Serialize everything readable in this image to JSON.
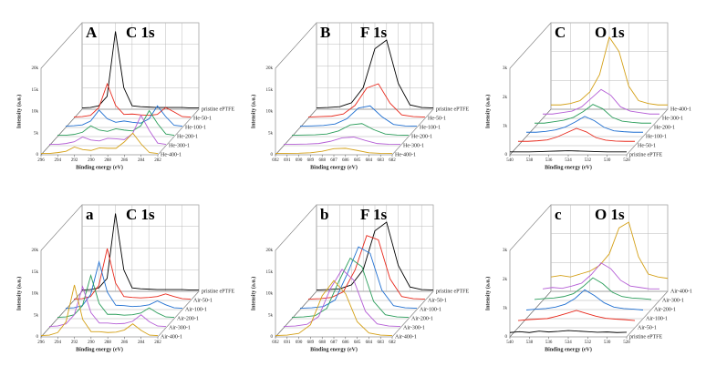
{
  "chart_data": [
    {
      "type": "waterfall",
      "label": "A",
      "title": "C 1s",
      "x_label": "Binding energy (eV)",
      "y_label": "Intensity (a.u.)",
      "x": [
        296,
        295,
        294,
        293,
        292,
        291,
        290,
        289,
        288,
        287,
        286,
        285,
        284,
        283,
        282
      ],
      "xlim": [
        296,
        282
      ],
      "xticks": [
        296,
        294,
        292,
        290,
        288,
        286,
        284,
        282
      ],
      "ylim": [
        0,
        20000
      ],
      "yticks": [
        0,
        {
          "value": 5000,
          "label": "5k"
        },
        {
          "value": 10000,
          "label": "10k"
        },
        {
          "value": 15000,
          "label": "15k"
        },
        {
          "value": 20000,
          "label": "20k"
        }
      ],
      "series": [
        {
          "name": "pristine ePTFE",
          "color": "#000000",
          "values": [
            300,
            400,
            800,
            3000,
            18000,
            5000,
            800,
            600,
            500,
            400,
            400,
            400,
            400,
            300,
            300
          ]
        },
        {
          "name": "He-50-1",
          "color": "#e8291c",
          "values": [
            300,
            400,
            700,
            2500,
            8000,
            3000,
            900,
            1000,
            800,
            700,
            900,
            2500,
            1500,
            400,
            300
          ]
        },
        {
          "name": "He-100-1",
          "color": "#1f6fd1",
          "values": [
            300,
            400,
            600,
            1500,
            4000,
            2000,
            1200,
            1500,
            1200,
            1000,
            2000,
            5000,
            2500,
            500,
            300
          ]
        },
        {
          "name": "He-200-1",
          "color": "#2a9d5a",
          "values": [
            300,
            300,
            500,
            1000,
            2500,
            1500,
            1200,
            1800,
            1500,
            1300,
            2500,
            6000,
            3000,
            600,
            300
          ]
        },
        {
          "name": "He-300-1",
          "color": "#b55fd6",
          "values": [
            300,
            300,
            500,
            900,
            2000,
            1300,
            1100,
            1700,
            1600,
            1400,
            2800,
            7000,
            3500,
            600,
            300
          ]
        },
        {
          "name": "He-400-1",
          "color": "#d4a017",
          "values": [
            300,
            300,
            500,
            800,
            1800,
            1200,
            1000,
            1600,
            1500,
            1500,
            3000,
            5000,
            2500,
            500,
            300
          ]
        }
      ]
    },
    {
      "type": "waterfall",
      "label": "B",
      "title": "F 1s",
      "x_label": "Binding energy (eV)",
      "y_label": "Intensity (a.u.)",
      "x": [
        692,
        691,
        690,
        689,
        688,
        687,
        686,
        685,
        684,
        683,
        682
      ],
      "xlim": [
        692,
        682
      ],
      "xticks": [
        692,
        691,
        690,
        689,
        688,
        687,
        686,
        685,
        684,
        683,
        682
      ],
      "ylim": [
        0,
        20000
      ],
      "yticks": [
        0,
        {
          "value": 5000,
          "label": "5k"
        },
        {
          "value": 10000,
          "label": "10k"
        },
        {
          "value": 15000,
          "label": "15k"
        },
        {
          "value": 20000,
          "label": "20k"
        }
      ],
      "series": [
        {
          "name": "pristine ePTFE",
          "color": "#000000",
          "values": [
            300,
            400,
            600,
            1500,
            5000,
            14000,
            16000,
            6000,
            1000,
            400,
            300
          ]
        },
        {
          "name": "He-50-1",
          "color": "#e8291c",
          "values": [
            300,
            400,
            500,
            1000,
            3000,
            7000,
            8000,
            3500,
            800,
            400,
            300
          ]
        },
        {
          "name": "He-100-1",
          "color": "#1f6fd1",
          "values": [
            300,
            350,
            450,
            800,
            2000,
            4500,
            5000,
            2500,
            700,
            350,
            300
          ]
        },
        {
          "name": "He-200-1",
          "color": "#2a9d5a",
          "values": [
            300,
            350,
            400,
            600,
            1300,
            2700,
            3000,
            1600,
            600,
            350,
            300
          ]
        },
        {
          "name": "He-300-1",
          "color": "#b55fd6",
          "values": [
            300,
            320,
            380,
            500,
            1000,
            1800,
            2000,
            1200,
            500,
            330,
            300
          ]
        },
        {
          "name": "He-400-1",
          "color": "#d4a017",
          "values": [
            300,
            320,
            350,
            450,
            800,
            1400,
            1500,
            1000,
            450,
            320,
            300
          ]
        }
      ]
    },
    {
      "type": "waterfall",
      "label": "C",
      "title": "O 1s",
      "x_label": "Binding energy (eV)",
      "y_label": "Intensity (a.u.)",
      "x": [
        540,
        539,
        538,
        537,
        536,
        535,
        534,
        533,
        532,
        531,
        530,
        529,
        528
      ],
      "xlim": [
        540,
        528
      ],
      "xticks": [
        540,
        538,
        536,
        534,
        532,
        530,
        528
      ],
      "ylim": [
        0,
        3000
      ],
      "yticks": [
        0,
        {
          "value": 1000,
          "label": "1k"
        },
        {
          "value": 2000,
          "label": "2k"
        },
        {
          "value": 3000,
          "label": "3k"
        }
      ],
      "series": [
        {
          "name": "He-400-1",
          "color": "#d4a017",
          "values": [
            150,
            150,
            200,
            300,
            600,
            1200,
            2500,
            2000,
            800,
            300,
            200,
            150,
            150
          ]
        },
        {
          "name": "He-300-1",
          "color": "#b55fd6",
          "values": [
            150,
            150,
            200,
            250,
            400,
            700,
            1000,
            800,
            400,
            250,
            200,
            150,
            150
          ]
        },
        {
          "name": "He-200-1",
          "color": "#2a9d5a",
          "values": [
            150,
            150,
            200,
            250,
            350,
            550,
            800,
            650,
            350,
            220,
            180,
            150,
            150
          ]
        },
        {
          "name": "He-100-1",
          "color": "#1f6fd1",
          "values": [
            150,
            150,
            180,
            230,
            330,
            500,
            700,
            550,
            320,
            200,
            170,
            150,
            150
          ]
        },
        {
          "name": "He-50-1",
          "color": "#e8291c",
          "values": [
            150,
            150,
            170,
            200,
            300,
            450,
            600,
            480,
            280,
            190,
            160,
            150,
            150
          ]
        },
        {
          "name": "pristine ePTFE",
          "color": "#000000",
          "values": [
            100,
            100,
            100,
            110,
            120,
            130,
            140,
            130,
            120,
            110,
            100,
            100,
            100
          ]
        }
      ]
    },
    {
      "type": "waterfall",
      "label": "a",
      "title": "C 1s",
      "x_label": "Binding energy (eV)",
      "y_label": "Intensity (a.u.)",
      "x": [
        296,
        295,
        294,
        293,
        292,
        291,
        290,
        289,
        288,
        287,
        286,
        285,
        284,
        283,
        282
      ],
      "xlim": [
        296,
        282
      ],
      "xticks": [
        296,
        294,
        292,
        290,
        288,
        286,
        284,
        282
      ],
      "ylim": [
        0,
        20000
      ],
      "yticks": [
        0,
        {
          "value": 5000,
          "label": "5k"
        },
        {
          "value": 10000,
          "label": "10k"
        },
        {
          "value": 15000,
          "label": "15k"
        },
        {
          "value": 20000,
          "label": "20k"
        }
      ],
      "series": [
        {
          "name": "pristine ePTFE",
          "color": "#000000",
          "values": [
            300,
            400,
            800,
            3000,
            18000,
            5000,
            800,
            600,
            500,
            400,
            400,
            400,
            400,
            300,
            300
          ]
        },
        {
          "name": "Air-50-1",
          "color": "#e8291c",
          "values": [
            300,
            400,
            900,
            3500,
            12000,
            4000,
            900,
            700,
            600,
            700,
            900,
            1500,
            900,
            400,
            300
          ]
        },
        {
          "name": "Air-100-1",
          "color": "#1f6fd1",
          "values": [
            300,
            400,
            900,
            3500,
            11000,
            4000,
            1000,
            900,
            700,
            800,
            1100,
            2000,
            1100,
            400,
            300
          ]
        },
        {
          "name": "Air-200-1",
          "color": "#2a9d5a",
          "values": [
            300,
            400,
            900,
            3000,
            10000,
            3500,
            1000,
            1000,
            800,
            900,
            1300,
            2500,
            1300,
            400,
            300
          ]
        },
        {
          "name": "Air-300-1",
          "color": "#b55fd6",
          "values": [
            300,
            400,
            900,
            3000,
            9500,
            3500,
            1100,
            1100,
            900,
            1000,
            1500,
            3000,
            1400,
            400,
            300
          ]
        },
        {
          "name": "Air-400-1",
          "color": "#d4a017",
          "values": [
            300,
            400,
            1000,
            3500,
            12000,
            4000,
            1200,
            1200,
            1000,
            1100,
            1600,
            3000,
            1500,
            400,
            300
          ]
        }
      ]
    },
    {
      "type": "waterfall",
      "label": "b",
      "title": "F 1s",
      "x_label": "Binding energy (eV)",
      "y_label": "Intensity (a.u.)",
      "x": [
        692,
        691,
        690,
        689,
        688,
        687,
        686,
        685,
        684,
        683,
        682
      ],
      "xlim": [
        692,
        682
      ],
      "xticks": [
        692,
        691,
        690,
        689,
        688,
        687,
        686,
        685,
        684,
        683,
        682
      ],
      "ylim": [
        0,
        20000
      ],
      "yticks": [
        0,
        {
          "value": 5000,
          "label": "5k"
        },
        {
          "value": 10000,
          "label": "10k"
        },
        {
          "value": 15000,
          "label": "15k"
        },
        {
          "value": 20000,
          "label": "20k"
        }
      ],
      "series": [
        {
          "name": "pristine ePTFE",
          "color": "#000000",
          "values": [
            300,
            400,
            600,
            1500,
            5000,
            14000,
            16000,
            6000,
            1000,
            400,
            300
          ]
        },
        {
          "name": "Air-50-1",
          "color": "#e8291c",
          "values": [
            300,
            400,
            700,
            2000,
            7000,
            15000,
            14000,
            5000,
            900,
            400,
            300
          ]
        },
        {
          "name": "Air-100-1",
          "color": "#1f6fd1",
          "values": [
            300,
            400,
            700,
            2200,
            8000,
            14500,
            13000,
            4500,
            900,
            400,
            300
          ]
        },
        {
          "name": "Air-200-1",
          "color": "#2a9d5a",
          "values": [
            300,
            400,
            700,
            2400,
            8500,
            14000,
            12000,
            4000,
            900,
            400,
            300
          ]
        },
        {
          "name": "Air-300-1",
          "color": "#b55fd6",
          "values": [
            300,
            400,
            800,
            2600,
            9000,
            13500,
            11000,
            3800,
            900,
            400,
            300
          ]
        },
        {
          "name": "Air-400-1",
          "color": "#d4a017",
          "values": [
            300,
            400,
            800,
            2800,
            9500,
            13000,
            10000,
            3500,
            900,
            400,
            300
          ]
        }
      ]
    },
    {
      "type": "waterfall",
      "label": "c",
      "title": "O 1s",
      "x_label": "Binding energy (eV)",
      "y_label": "Intensity (a.u.)",
      "x": [
        540,
        539,
        538,
        537,
        536,
        535,
        534,
        533,
        532,
        531,
        530,
        529,
        528
      ],
      "xlim": [
        540,
        528
      ],
      "xticks": [
        540,
        538,
        536,
        534,
        532,
        530,
        528
      ],
      "ylim": [
        0,
        3000
      ],
      "yticks": [
        0,
        {
          "value": 1000,
          "label": "1k"
        },
        {
          "value": 2000,
          "label": "2k"
        },
        {
          "value": 3000,
          "label": "3k"
        }
      ],
      "series": [
        {
          "name": "Air-400-1",
          "color": "#d4a017",
          "values": [
            500,
            550,
            500,
            600,
            700,
            900,
            1300,
            2200,
            2400,
            1200,
            600,
            500,
            450
          ]
        },
        {
          "name": "Air-300-1",
          "color": "#b55fd6",
          "values": [
            400,
            450,
            420,
            500,
            600,
            900,
            1300,
            1100,
            700,
            500,
            450,
            400,
            400
          ]
        },
        {
          "name": "Air-200-1",
          "color": "#2a9d5a",
          "values": [
            350,
            380,
            400,
            450,
            550,
            800,
            1100,
            900,
            600,
            450,
            400,
            380,
            350
          ]
        },
        {
          "name": "Air-100-1",
          "color": "#1f6fd1",
          "values": [
            300,
            330,
            350,
            400,
            500,
            700,
            1000,
            800,
            550,
            400,
            350,
            330,
            300
          ]
        },
        {
          "name": "Air-50-1",
          "color": "#e8291c",
          "values": [
            250,
            280,
            300,
            320,
            400,
            500,
            600,
            500,
            400,
            330,
            300,
            280,
            250
          ]
        },
        {
          "name": "pristine ePTFE",
          "color": "#000000",
          "values": [
            150,
            180,
            150,
            200,
            170,
            190,
            220,
            200,
            180,
            160,
            170,
            150,
            160
          ]
        }
      ]
    }
  ]
}
